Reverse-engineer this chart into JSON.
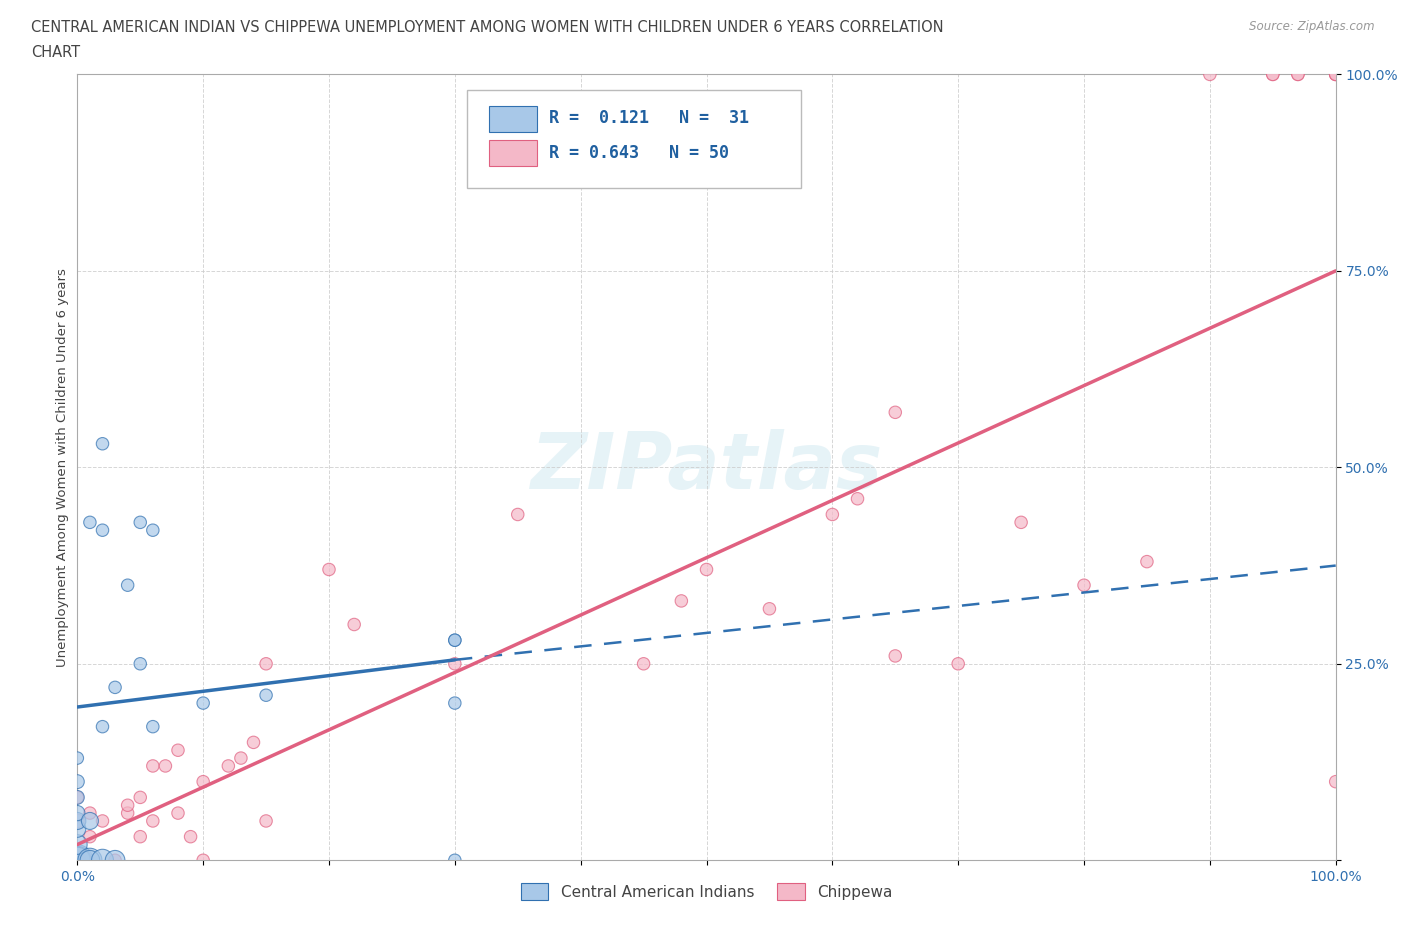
{
  "title_line1": "CENTRAL AMERICAN INDIAN VS CHIPPEWA UNEMPLOYMENT AMONG WOMEN WITH CHILDREN UNDER 6 YEARS CORRELATION",
  "title_line2": "CHART",
  "source": "Source: ZipAtlas.com",
  "ylabel": "Unemployment Among Women with Children Under 6 years",
  "xlim": [
    0.0,
    1.0
  ],
  "ylim": [
    0.0,
    1.0
  ],
  "legend1_R": "0.121",
  "legend1_N": "31",
  "legend2_R": "0.643",
  "legend2_N": "50",
  "color_blue": "#a8c8e8",
  "color_pink": "#f4b8c8",
  "color_line_blue": "#3070b0",
  "color_line_pink": "#e06080",
  "watermark": "ZIPatlas",
  "legend_label1": "Central American Indians",
  "legend_label2": "Chippewa",
  "blue_line_x0": 0.0,
  "blue_line_y0": 0.195,
  "blue_line_x1": 0.3,
  "blue_line_y1": 0.255,
  "blue_line_xd": 1.0,
  "blue_line_yd": 0.375,
  "pink_line_x0": 0.0,
  "pink_line_y0": 0.02,
  "pink_line_x1": 1.0,
  "pink_line_y1": 0.75,
  "blue_x": [
    0.0,
    0.0,
    0.0,
    0.0,
    0.0,
    0.0,
    0.0,
    0.0,
    0.0,
    0.0,
    0.01,
    0.01,
    0.01,
    0.01,
    0.02,
    0.02,
    0.02,
    0.02,
    0.03,
    0.03,
    0.04,
    0.05,
    0.05,
    0.06,
    0.06,
    0.1,
    0.15,
    0.3,
    0.3,
    0.3,
    0.3
  ],
  "blue_y": [
    0.0,
    0.0,
    0.0,
    0.02,
    0.04,
    0.05,
    0.06,
    0.08,
    0.1,
    0.13,
    0.0,
    0.0,
    0.05,
    0.43,
    0.0,
    0.17,
    0.42,
    0.53,
    0.0,
    0.22,
    0.35,
    0.25,
    0.43,
    0.17,
    0.42,
    0.2,
    0.21,
    0.0,
    0.2,
    0.28,
    0.28
  ],
  "blue_sizes": [
    500,
    400,
    350,
    200,
    150,
    150,
    120,
    100,
    100,
    80,
    300,
    200,
    150,
    80,
    250,
    80,
    80,
    80,
    200,
    80,
    80,
    80,
    80,
    80,
    80,
    80,
    80,
    80,
    80,
    80,
    80
  ],
  "pink_x": [
    0.0,
    0.0,
    0.0,
    0.0,
    0.01,
    0.01,
    0.02,
    0.03,
    0.04,
    0.04,
    0.05,
    0.05,
    0.06,
    0.06,
    0.07,
    0.08,
    0.08,
    0.09,
    0.1,
    0.1,
    0.12,
    0.13,
    0.14,
    0.15,
    0.15,
    0.2,
    0.22,
    0.3,
    0.35,
    0.45,
    0.48,
    0.5,
    0.55,
    0.6,
    0.62,
    0.65,
    0.65,
    0.7,
    0.75,
    0.8,
    0.85,
    0.9,
    0.95,
    0.95,
    0.97,
    0.97,
    1.0,
    1.0,
    1.0,
    1.0
  ],
  "pink_y": [
    0.0,
    0.0,
    0.05,
    0.08,
    0.03,
    0.06,
    0.05,
    0.0,
    0.06,
    0.07,
    0.03,
    0.08,
    0.05,
    0.12,
    0.12,
    0.06,
    0.14,
    0.03,
    0.0,
    0.1,
    0.12,
    0.13,
    0.15,
    0.05,
    0.25,
    0.37,
    0.3,
    0.25,
    0.44,
    0.25,
    0.33,
    0.37,
    0.32,
    0.44,
    0.46,
    0.57,
    0.26,
    0.25,
    0.43,
    0.35,
    0.38,
    1.0,
    1.0,
    1.0,
    1.0,
    1.0,
    1.0,
    1.0,
    1.0,
    0.1
  ],
  "pink_sizes": [
    150,
    120,
    100,
    80,
    80,
    80,
    80,
    80,
    80,
    80,
    80,
    80,
    80,
    80,
    80,
    80,
    80,
    80,
    80,
    80,
    80,
    80,
    80,
    80,
    80,
    80,
    80,
    80,
    80,
    80,
    80,
    80,
    80,
    80,
    80,
    80,
    80,
    80,
    80,
    80,
    80,
    80,
    80,
    80,
    80,
    80,
    80,
    80,
    80,
    80
  ]
}
